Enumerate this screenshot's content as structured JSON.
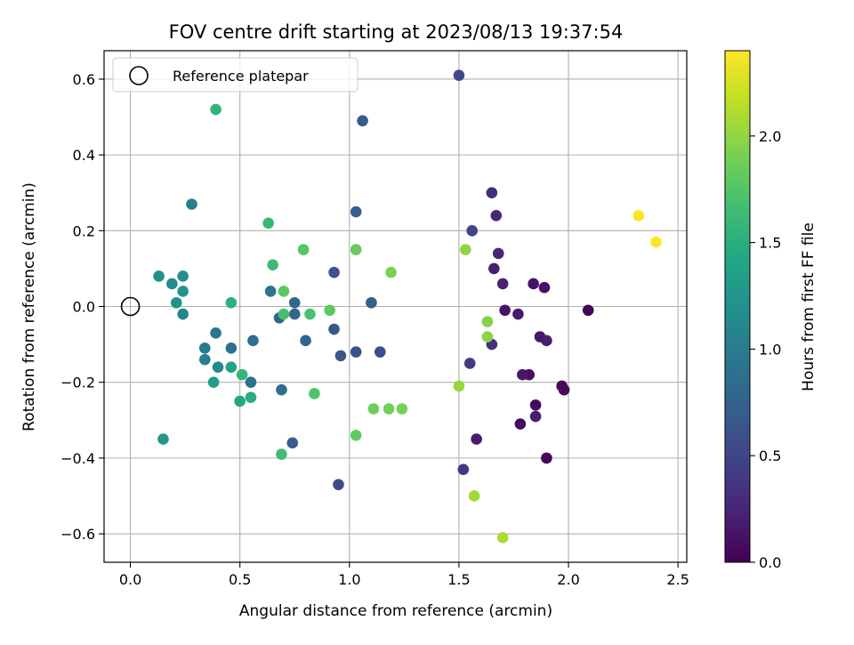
{
  "chart_data": {
    "type": "scatter",
    "title": "FOV centre drift starting at 2023/08/13 19:37:54",
    "xlabel": "Angular distance from reference (arcmin)",
    "ylabel": "Rotation from reference (arcmin)",
    "xlim": [
      -0.12,
      2.54
    ],
    "ylim": [
      -0.675,
      0.675
    ],
    "xticks": [
      0.0,
      0.5,
      1.0,
      1.5,
      2.0,
      2.5
    ],
    "xtick_labels": [
      "0.0",
      "0.5",
      "1.0",
      "1.5",
      "2.0",
      "2.5"
    ],
    "yticks": [
      -0.6,
      -0.4,
      -0.2,
      0.0,
      0.2,
      0.4,
      0.6
    ],
    "ytick_labels": [
      "−0.6",
      "−0.4",
      "−0.2",
      "0.0",
      "0.2",
      "0.4",
      "0.6"
    ],
    "grid": true,
    "legend": {
      "placement": "top-left",
      "entries": [
        "Reference platepar"
      ]
    },
    "reference_point": {
      "x": 0.0,
      "y": 0.0
    },
    "colorbar": {
      "label": "Hours from first FF file",
      "range": [
        0.0,
        2.4
      ],
      "ticks": [
        0.0,
        0.5,
        1.0,
        1.5,
        2.0
      ],
      "tick_labels": [
        "0.0",
        "0.5",
        "1.0",
        "1.5",
        "2.0"
      ],
      "colormap": "viridis"
    },
    "points": [
      {
        "x": 2.09,
        "y": -0.01,
        "c": 0.02
      },
      {
        "x": 1.9,
        "y": -0.4,
        "c": 0.03
      },
      {
        "x": 1.98,
        "y": -0.22,
        "c": 0.05
      },
      {
        "x": 1.97,
        "y": -0.21,
        "c": 0.06
      },
      {
        "x": 1.85,
        "y": -0.26,
        "c": 0.07
      },
      {
        "x": 1.78,
        "y": -0.31,
        "c": 0.08
      },
      {
        "x": 1.82,
        "y": -0.18,
        "c": 0.1
      },
      {
        "x": 1.89,
        "y": 0.05,
        "c": 0.11
      },
      {
        "x": 1.71,
        "y": -0.01,
        "c": 0.12
      },
      {
        "x": 1.84,
        "y": 0.06,
        "c": 0.13
      },
      {
        "x": 1.87,
        "y": -0.08,
        "c": 0.15
      },
      {
        "x": 1.79,
        "y": -0.18,
        "c": 0.16
      },
      {
        "x": 1.77,
        "y": -0.02,
        "c": 0.17
      },
      {
        "x": 1.58,
        "y": -0.35,
        "c": 0.18
      },
      {
        "x": 1.9,
        "y": -0.09,
        "c": 0.19
      },
      {
        "x": 1.85,
        "y": -0.29,
        "c": 0.2
      },
      {
        "x": 1.66,
        "y": 0.1,
        "c": 0.21
      },
      {
        "x": 1.7,
        "y": 0.06,
        "c": 0.23
      },
      {
        "x": 1.67,
        "y": 0.24,
        "c": 0.26
      },
      {
        "x": 1.68,
        "y": 0.14,
        "c": 0.28
      },
      {
        "x": 1.65,
        "y": 0.3,
        "c": 0.31
      },
      {
        "x": 1.65,
        "y": -0.1,
        "c": 0.33
      },
      {
        "x": 1.52,
        "y": -0.43,
        "c": 0.38
      },
      {
        "x": 1.55,
        "y": -0.15,
        "c": 0.42
      },
      {
        "x": 1.56,
        "y": 0.2,
        "c": 0.48
      },
      {
        "x": 1.5,
        "y": 0.61,
        "c": 0.52
      },
      {
        "x": 0.95,
        "y": -0.47,
        "c": 0.55
      },
      {
        "x": 1.14,
        "y": -0.12,
        "c": 0.58
      },
      {
        "x": 0.93,
        "y": 0.09,
        "c": 0.6
      },
      {
        "x": 1.03,
        "y": -0.12,
        "c": 0.62
      },
      {
        "x": 0.96,
        "y": -0.13,
        "c": 0.64
      },
      {
        "x": 0.93,
        "y": -0.06,
        "c": 0.66
      },
      {
        "x": 1.06,
        "y": 0.49,
        "c": 0.68
      },
      {
        "x": 0.74,
        "y": -0.36,
        "c": 0.7
      },
      {
        "x": 1.1,
        "y": 0.01,
        "c": 0.72
      },
      {
        "x": 1.03,
        "y": 0.25,
        "c": 0.74
      },
      {
        "x": 0.8,
        "y": -0.09,
        "c": 0.76
      },
      {
        "x": 0.75,
        "y": -0.02,
        "c": 0.78
      },
      {
        "x": 0.68,
        "y": -0.03,
        "c": 0.8
      },
      {
        "x": 0.75,
        "y": 0.01,
        "c": 0.82
      },
      {
        "x": 0.56,
        "y": -0.09,
        "c": 0.84
      },
      {
        "x": 0.69,
        "y": -0.22,
        "c": 0.86
      },
      {
        "x": 0.46,
        "y": -0.11,
        "c": 0.88
      },
      {
        "x": 0.55,
        "y": -0.2,
        "c": 0.9
      },
      {
        "x": 0.64,
        "y": 0.04,
        "c": 0.92
      },
      {
        "x": 0.39,
        "y": -0.07,
        "c": 0.95
      },
      {
        "x": 0.34,
        "y": -0.11,
        "c": 0.98
      },
      {
        "x": 0.34,
        "y": -0.14,
        "c": 1.02
      },
      {
        "x": 0.28,
        "y": 0.27,
        "c": 1.05
      },
      {
        "x": 0.24,
        "y": -0.02,
        "c": 1.08
      },
      {
        "x": 0.4,
        "y": -0.16,
        "c": 1.12
      },
      {
        "x": 0.19,
        "y": 0.06,
        "c": 1.15
      },
      {
        "x": 0.24,
        "y": 0.08,
        "c": 1.18
      },
      {
        "x": 0.13,
        "y": 0.08,
        "c": 1.2
      },
      {
        "x": 0.21,
        "y": 0.01,
        "c": 1.22
      },
      {
        "x": 0.24,
        "y": 0.04,
        "c": 1.25
      },
      {
        "x": 0.15,
        "y": -0.35,
        "c": 1.28
      },
      {
        "x": 0.38,
        "y": -0.2,
        "c": 1.32
      },
      {
        "x": 0.46,
        "y": -0.16,
        "c": 1.38
      },
      {
        "x": 0.5,
        "y": -0.25,
        "c": 1.44
      },
      {
        "x": 0.55,
        "y": -0.24,
        "c": 1.5
      },
      {
        "x": 0.46,
        "y": 0.01,
        "c": 1.52
      },
      {
        "x": 0.39,
        "y": 0.52,
        "c": 1.55
      },
      {
        "x": 0.51,
        "y": -0.18,
        "c": 1.58
      },
      {
        "x": 0.63,
        "y": 0.22,
        "c": 1.6
      },
      {
        "x": 0.65,
        "y": 0.11,
        "c": 1.62
      },
      {
        "x": 0.69,
        "y": -0.39,
        "c": 1.65
      },
      {
        "x": 0.7,
        "y": -0.02,
        "c": 1.68
      },
      {
        "x": 0.82,
        "y": -0.02,
        "c": 1.7
      },
      {
        "x": 0.84,
        "y": -0.23,
        "c": 1.72
      },
      {
        "x": 0.79,
        "y": 0.15,
        "c": 1.75
      },
      {
        "x": 0.7,
        "y": 0.04,
        "c": 1.78
      },
      {
        "x": 0.91,
        "y": -0.01,
        "c": 1.8
      },
      {
        "x": 1.03,
        "y": -0.34,
        "c": 1.82
      },
      {
        "x": 1.03,
        "y": 0.15,
        "c": 1.84
      },
      {
        "x": 1.11,
        "y": -0.27,
        "c": 1.86
      },
      {
        "x": 1.18,
        "y": -0.27,
        "c": 1.88
      },
      {
        "x": 1.24,
        "y": -0.27,
        "c": 1.9
      },
      {
        "x": 1.19,
        "y": 0.09,
        "c": 1.92
      },
      {
        "x": 1.63,
        "y": -0.04,
        "c": 1.96
      },
      {
        "x": 1.63,
        "y": -0.08,
        "c": 1.98
      },
      {
        "x": 1.53,
        "y": 0.15,
        "c": 2.0
      },
      {
        "x": 1.5,
        "y": -0.21,
        "c": 2.02
      },
      {
        "x": 1.57,
        "y": -0.5,
        "c": 2.06
      },
      {
        "x": 1.7,
        "y": -0.61,
        "c": 2.1
      },
      {
        "x": 2.32,
        "y": 0.24,
        "c": 2.38
      },
      {
        "x": 2.4,
        "y": 0.17,
        "c": 2.4
      }
    ]
  }
}
